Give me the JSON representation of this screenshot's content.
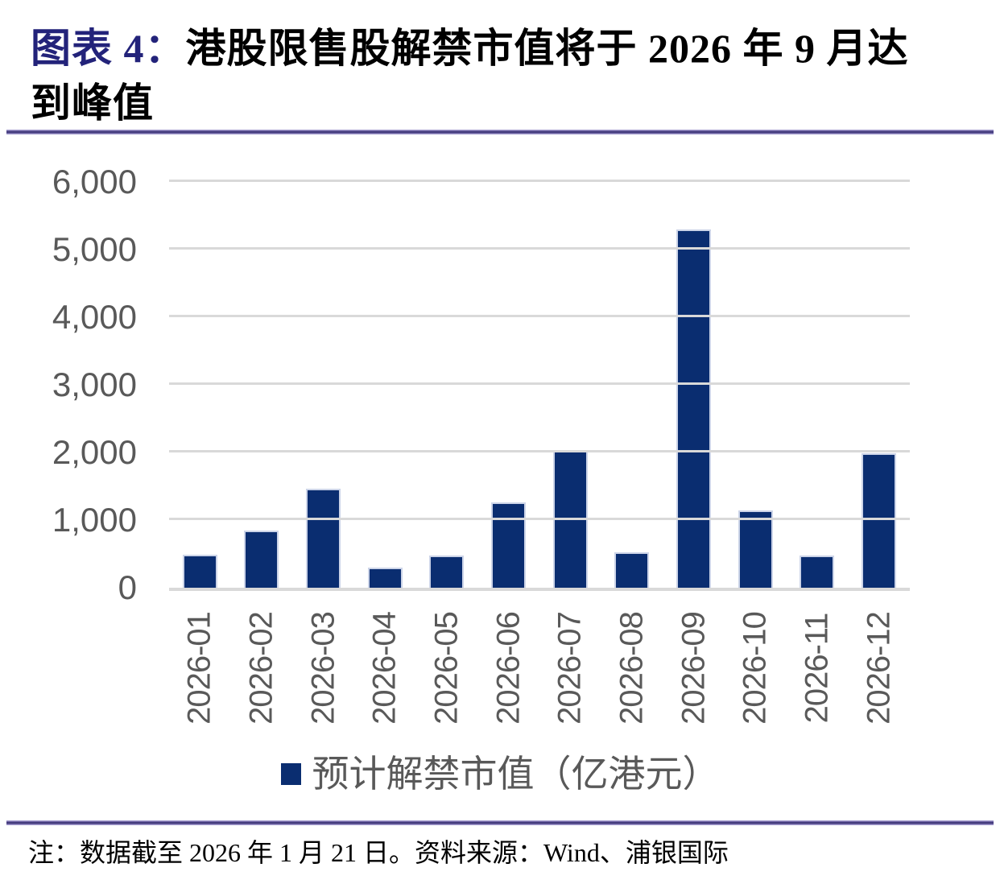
{
  "title": {
    "prefix": "图表 4：",
    "line1": "港股限售股解禁市值将于 2026 年 9 月达",
    "line2": "到峰值"
  },
  "chart_data": {
    "type": "bar",
    "title": "港股限售股解禁市值将于 2026 年 9 月达到峰值",
    "categories": [
      "2026-01",
      "2026-02",
      "2026-03",
      "2026-04",
      "2026-05",
      "2026-06",
      "2026-07",
      "2026-08",
      "2026-09",
      "2026-10",
      "2026-11",
      "2026-12"
    ],
    "values": [
      490,
      840,
      1460,
      300,
      480,
      1260,
      2020,
      520,
      5300,
      1140,
      480,
      1990
    ],
    "series_name": "预计解禁市值（亿港元）",
    "xlabel": "",
    "ylabel": "",
    "ylim": [
      0,
      6000
    ],
    "yticks": [
      0,
      1000,
      2000,
      3000,
      4000,
      5000,
      6000
    ],
    "ytick_labels": [
      "0",
      "1,000",
      "2,000",
      "3,000",
      "4,000",
      "5,000",
      "6,000"
    ],
    "grid": "horizontal",
    "legend_position": "bottom",
    "bar_color": "#0a2d70"
  },
  "legend": {
    "label": "预计解禁市值（亿港元）",
    "swatch_color": "#0a2d70"
  },
  "footer": {
    "note": "注：数据截至 2026 年 1 月 21 日。资料来源：Wind、浦银国际"
  },
  "colors": {
    "title_accent_navy": "#23237a",
    "bar_navy": "#0a2d70",
    "axis_text_gray": "#595959",
    "gridline_gray": "#d9d9d9",
    "rule_purple": "#453c7e"
  }
}
